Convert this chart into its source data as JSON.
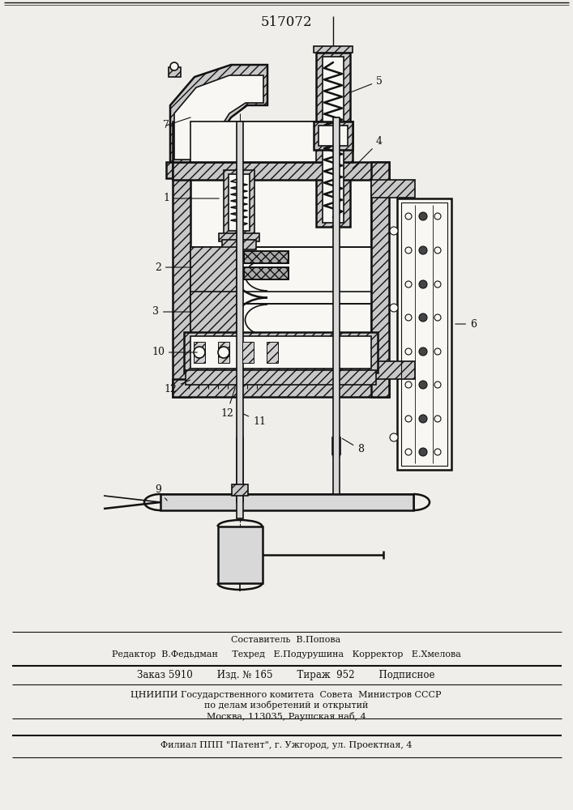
{
  "title_number": "517072",
  "bg": "#f0eeea",
  "lc": "#111111",
  "hatch_fc": "#c8c8c8",
  "white": "#f8f7f3",
  "footer": {
    "line1_center": "Составитель  В.Попова",
    "line2": "Редактор  В.Федьдман     Техред   Е.Подурушина   Корректор   Е.Хмелова",
    "line3": "Заказ 5910        Изд. № 165        Тираж  952        Подписное",
    "line4": "ЦНИИПИ Государственного комитета  Совета  Министров СССР",
    "line5": "по делам изобретений и открытий",
    "line6": "Москва, 113035, Раушская наб, 4",
    "line7": "Филиал ППП \"Патент\", г. Ужгород, ул. Проектная, 4"
  }
}
